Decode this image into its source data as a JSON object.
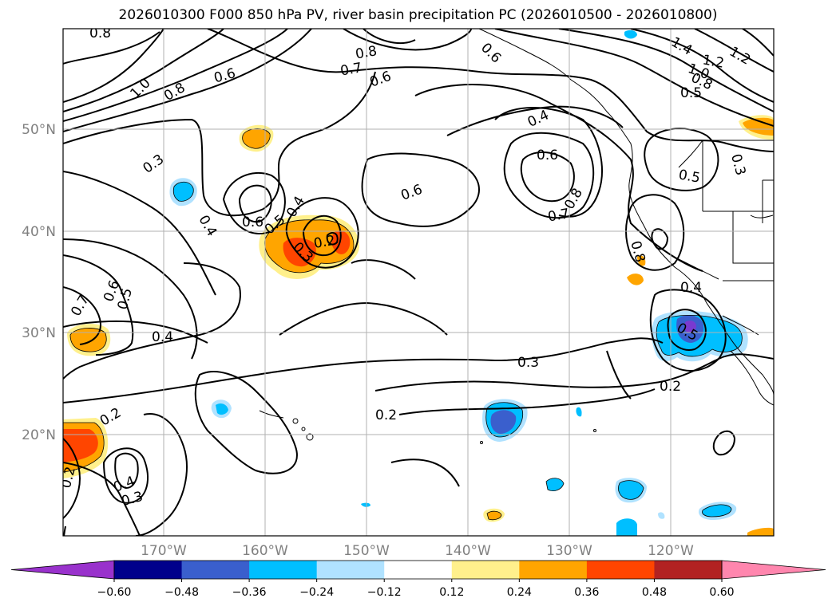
{
  "title": "2026010300 F000 850 hPa PV, river basin precipitation PC (2026010500 - 2026010800)",
  "map": {
    "lat_ticks": [
      "50°N",
      "40°N",
      "30°N",
      "20°N"
    ],
    "lon_ticks": [
      "170°W",
      "160°W",
      "150°W",
      "140°W",
      "130°W",
      "120°W"
    ],
    "contour_labels": [
      "0.8",
      "1.0",
      "0.8",
      "0.6",
      "0.8",
      "0.7",
      "0.6",
      "0.6",
      "0.4",
      "1.4",
      "1.2",
      "1.2",
      "1.0",
      "0.8",
      "0.5",
      "0.3",
      "0.6",
      "0.5",
      "0.4",
      "0.2",
      "0.3",
      "0.4",
      "0.6",
      "0.6",
      "0.7",
      "0.8",
      "0.5",
      "0.8",
      "0.4",
      "0.7",
      "0.6",
      "0.5",
      "0.4",
      "0.5",
      "0.3",
      "0.3",
      "0.2",
      "0.2",
      "0.2",
      "0.4",
      "0.3",
      "0.2"
    ]
  },
  "colorbar": {
    "ticks": [
      "−0.60",
      "−0.48",
      "−0.36",
      "−0.24",
      "−0.12",
      "0.12",
      "0.24",
      "0.36",
      "0.48",
      "0.60"
    ],
    "colors": [
      "#9932cc",
      "#00008b",
      "#3a5fcd",
      "#00bfff",
      "#b0e2ff",
      "#ffffff",
      "#fff08c",
      "#ffa500",
      "#ff4500",
      "#b22222",
      "#ff86ae"
    ]
  },
  "colors": {
    "contour": "#000000",
    "grid": "#b0b0b0",
    "axis_label": "#808080"
  }
}
